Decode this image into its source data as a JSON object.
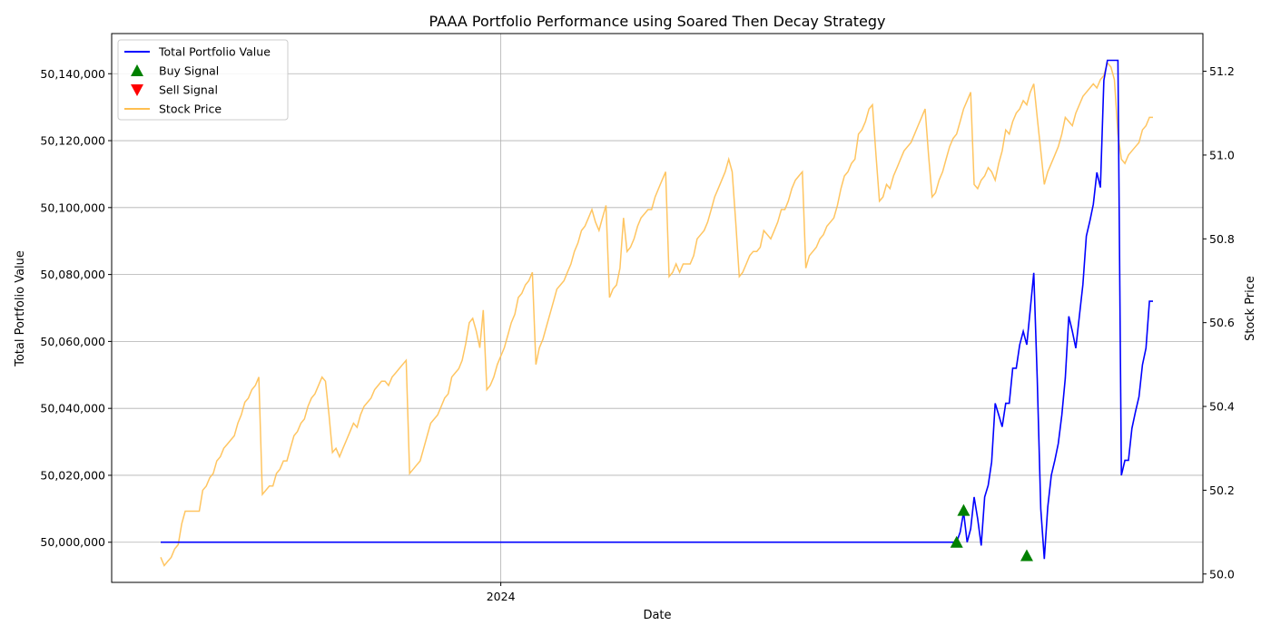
{
  "chart_data": {
    "type": "line",
    "title": "PAAA Portfolio Performance using Soared Then Decay Strategy",
    "xlabel": "Date",
    "ylabel_left": "Total Portfolio Value",
    "ylabel_right": "Stock Price",
    "x_ticks": [
      "2024"
    ],
    "x_range_index": [
      0,
      270
    ],
    "x_tick_index": 97,
    "y_left_range": [
      49988000,
      50152000
    ],
    "y_left_ticks": [
      "50,000,000",
      "50,020,000",
      "50,040,000",
      "50,060,000",
      "50,080,000",
      "50,100,000",
      "50,120,000",
      "50,140,000"
    ],
    "y_left_tick_values": [
      50000000,
      50020000,
      50040000,
      50060000,
      50080000,
      50100000,
      50120000,
      50140000
    ],
    "y_right_range": [
      49.98,
      51.29
    ],
    "y_right_ticks": [
      "50.0",
      "50.2",
      "50.4",
      "50.6",
      "50.8",
      "51.0",
      "51.2"
    ],
    "y_right_tick_values": [
      50.0,
      50.2,
      50.4,
      50.6,
      50.8,
      51.0,
      51.2
    ],
    "grid": true,
    "legend_position": "top-left",
    "legend": [
      {
        "label": "Total Portfolio Value",
        "kind": "line",
        "color": "#0000ff"
      },
      {
        "label": "Buy Signal",
        "kind": "marker-up",
        "color": "#008000"
      },
      {
        "label": "Sell Signal",
        "kind": "marker-down",
        "color": "#ff0000"
      },
      {
        "label": "Stock Price",
        "kind": "line",
        "color": "#ffbf50"
      }
    ],
    "portfolio_value": [
      [
        0,
        50000000
      ],
      [
        227,
        50000000
      ],
      [
        228,
        50003000
      ],
      [
        229,
        50009000
      ],
      [
        230,
        50000000
      ],
      [
        231,
        50004000
      ],
      [
        232,
        50013500
      ],
      [
        233,
        50007000
      ],
      [
        234,
        49999000
      ],
      [
        235,
        50013500
      ],
      [
        236,
        50017000
      ],
      [
        237,
        50024000
      ],
      [
        238,
        50041500
      ],
      [
        239,
        50038000
      ],
      [
        240,
        50034500
      ],
      [
        241,
        50041500
      ],
      [
        242,
        50041500
      ],
      [
        243,
        50052000
      ],
      [
        244,
        50052000
      ],
      [
        245,
        50059000
      ],
      [
        246,
        50063000
      ],
      [
        247,
        50059000
      ],
      [
        248,
        50069500
      ],
      [
        249,
        50080500
      ],
      [
        250,
        50049000
      ],
      [
        251,
        50010000
      ],
      [
        252,
        49995000
      ],
      [
        253,
        50010500
      ],
      [
        254,
        50020000
      ],
      [
        255,
        50024500
      ],
      [
        256,
        50029500
      ],
      [
        257,
        50038000
      ],
      [
        258,
        50049000
      ],
      [
        259,
        50067500
      ],
      [
        260,
        50063000
      ],
      [
        261,
        50058000
      ],
      [
        262,
        50067500
      ],
      [
        263,
        50077000
      ],
      [
        264,
        50091500
      ],
      [
        265,
        50096000
      ],
      [
        266,
        50101000
      ],
      [
        267,
        50110500
      ],
      [
        268,
        50106000
      ],
      [
        269,
        50138000
      ],
      [
        270,
        50144000
      ],
      [
        272,
        50144000
      ],
      [
        273,
        50144000
      ],
      [
        274,
        50020000
      ],
      [
        275,
        50024500
      ],
      [
        276,
        50024500
      ],
      [
        277,
        50034000
      ],
      [
        278,
        50039000
      ],
      [
        279,
        50043500
      ],
      [
        280,
        50053000
      ],
      [
        281,
        50058000
      ],
      [
        282,
        50072000
      ],
      [
        283,
        50072000
      ]
    ],
    "stock_price": [
      [
        0,
        50.04
      ],
      [
        1,
        50.02
      ],
      [
        2,
        50.03
      ],
      [
        3,
        50.04
      ],
      [
        4,
        50.06
      ],
      [
        5,
        50.07
      ],
      [
        6,
        50.12
      ],
      [
        7,
        50.15
      ],
      [
        8,
        50.15
      ],
      [
        9,
        50.15
      ],
      [
        10,
        50.15
      ],
      [
        11,
        50.15
      ],
      [
        12,
        50.2
      ],
      [
        13,
        50.21
      ],
      [
        14,
        50.23
      ],
      [
        15,
        50.24
      ],
      [
        16,
        50.27
      ],
      [
        17,
        50.28
      ],
      [
        18,
        50.3
      ],
      [
        19,
        50.31
      ],
      [
        20,
        50.32
      ],
      [
        21,
        50.33
      ],
      [
        22,
        50.36
      ],
      [
        23,
        50.38
      ],
      [
        24,
        50.41
      ],
      [
        25,
        50.42
      ],
      [
        26,
        50.44
      ],
      [
        27,
        50.45
      ],
      [
        28,
        50.47
      ],
      [
        29,
        50.19
      ],
      [
        30,
        50.2
      ],
      [
        31,
        50.21
      ],
      [
        32,
        50.21
      ],
      [
        33,
        50.24
      ],
      [
        34,
        50.25
      ],
      [
        35,
        50.27
      ],
      [
        36,
        50.27
      ],
      [
        37,
        50.3
      ],
      [
        38,
        50.33
      ],
      [
        39,
        50.34
      ],
      [
        40,
        50.36
      ],
      [
        41,
        50.37
      ],
      [
        42,
        50.4
      ],
      [
        43,
        50.42
      ],
      [
        44,
        50.43
      ],
      [
        45,
        50.45
      ],
      [
        46,
        50.47
      ],
      [
        47,
        50.46
      ],
      [
        48,
        50.38
      ],
      [
        49,
        50.29
      ],
      [
        50,
        50.3
      ],
      [
        51,
        50.28
      ],
      [
        52,
        50.3
      ],
      [
        53,
        50.32
      ],
      [
        54,
        50.34
      ],
      [
        55,
        50.36
      ],
      [
        56,
        50.35
      ],
      [
        57,
        50.38
      ],
      [
        58,
        50.4
      ],
      [
        59,
        50.41
      ],
      [
        60,
        50.42
      ],
      [
        61,
        50.44
      ],
      [
        62,
        50.45
      ],
      [
        63,
        50.46
      ],
      [
        64,
        50.46
      ],
      [
        65,
        50.45
      ],
      [
        66,
        50.47
      ],
      [
        67,
        50.48
      ],
      [
        68,
        50.49
      ],
      [
        69,
        50.5
      ],
      [
        70,
        50.51
      ],
      [
        71,
        50.24
      ],
      [
        72,
        50.25
      ],
      [
        73,
        50.26
      ],
      [
        74,
        50.27
      ],
      [
        75,
        50.3
      ],
      [
        76,
        50.33
      ],
      [
        77,
        50.36
      ],
      [
        78,
        50.37
      ],
      [
        79,
        50.38
      ],
      [
        80,
        50.4
      ],
      [
        81,
        50.42
      ],
      [
        82,
        50.43
      ],
      [
        83,
        50.47
      ],
      [
        84,
        50.48
      ],
      [
        85,
        50.49
      ],
      [
        86,
        50.51
      ],
      [
        87,
        50.55
      ],
      [
        88,
        50.6
      ],
      [
        89,
        50.61
      ],
      [
        90,
        50.58
      ],
      [
        91,
        50.54
      ],
      [
        92,
        50.63
      ],
      [
        93,
        50.44
      ],
      [
        94,
        50.45
      ],
      [
        95,
        50.47
      ],
      [
        96,
        50.5
      ],
      [
        97,
        50.52
      ],
      [
        98,
        50.54
      ],
      [
        99,
        50.57
      ],
      [
        100,
        50.6
      ],
      [
        101,
        50.62
      ],
      [
        102,
        50.66
      ],
      [
        103,
        50.67
      ],
      [
        104,
        50.69
      ],
      [
        105,
        50.7
      ],
      [
        106,
        50.72
      ],
      [
        107,
        50.5
      ],
      [
        108,
        50.54
      ],
      [
        109,
        50.56
      ],
      [
        110,
        50.59
      ],
      [
        111,
        50.62
      ],
      [
        112,
        50.65
      ],
      [
        113,
        50.68
      ],
      [
        114,
        50.69
      ],
      [
        115,
        50.7
      ],
      [
        116,
        50.72
      ],
      [
        117,
        50.74
      ],
      [
        118,
        50.77
      ],
      [
        119,
        50.79
      ],
      [
        120,
        50.82
      ],
      [
        121,
        50.83
      ],
      [
        122,
        50.85
      ],
      [
        123,
        50.87
      ],
      [
        124,
        50.84
      ],
      [
        125,
        50.82
      ],
      [
        126,
        50.85
      ],
      [
        127,
        50.88
      ],
      [
        128,
        50.66
      ],
      [
        129,
        50.68
      ],
      [
        130,
        50.69
      ],
      [
        131,
        50.73
      ],
      [
        132,
        50.85
      ],
      [
        133,
        50.77
      ],
      [
        134,
        50.78
      ],
      [
        135,
        50.8
      ],
      [
        136,
        50.83
      ],
      [
        137,
        50.85
      ],
      [
        138,
        50.86
      ],
      [
        139,
        50.87
      ],
      [
        140,
        50.87
      ],
      [
        141,
        50.9
      ],
      [
        142,
        50.92
      ],
      [
        143,
        50.94
      ],
      [
        144,
        50.96
      ],
      [
        145,
        50.71
      ],
      [
        146,
        50.72
      ],
      [
        147,
        50.74
      ],
      [
        148,
        50.72
      ],
      [
        149,
        50.74
      ],
      [
        150,
        50.74
      ],
      [
        151,
        50.74
      ],
      [
        152,
        50.76
      ],
      [
        153,
        50.8
      ],
      [
        154,
        50.81
      ],
      [
        155,
        50.82
      ],
      [
        156,
        50.84
      ],
      [
        157,
        50.87
      ],
      [
        158,
        50.9
      ],
      [
        159,
        50.92
      ],
      [
        160,
        50.94
      ],
      [
        161,
        50.96
      ],
      [
        162,
        50.99
      ],
      [
        163,
        50.96
      ],
      [
        164,
        50.84
      ],
      [
        165,
        50.71
      ],
      [
        166,
        50.72
      ],
      [
        167,
        50.74
      ],
      [
        168,
        50.76
      ],
      [
        169,
        50.77
      ],
      [
        170,
        50.77
      ],
      [
        171,
        50.78
      ],
      [
        172,
        50.82
      ],
      [
        173,
        50.81
      ],
      [
        174,
        50.8
      ],
      [
        175,
        50.82
      ],
      [
        176,
        50.84
      ],
      [
        177,
        50.87
      ],
      [
        178,
        50.87
      ],
      [
        179,
        50.89
      ],
      [
        180,
        50.92
      ],
      [
        181,
        50.94
      ],
      [
        182,
        50.95
      ],
      [
        183,
        50.96
      ],
      [
        184,
        50.73
      ],
      [
        185,
        50.76
      ],
      [
        186,
        50.77
      ],
      [
        187,
        50.78
      ],
      [
        188,
        50.8
      ],
      [
        189,
        50.81
      ],
      [
        190,
        50.83
      ],
      [
        191,
        50.84
      ],
      [
        192,
        50.85
      ],
      [
        193,
        50.88
      ],
      [
        194,
        50.92
      ],
      [
        195,
        50.95
      ],
      [
        196,
        50.96
      ],
      [
        197,
        50.98
      ],
      [
        198,
        50.99
      ],
      [
        199,
        51.05
      ],
      [
        200,
        51.06
      ],
      [
        201,
        51.08
      ],
      [
        202,
        51.11
      ],
      [
        203,
        51.12
      ],
      [
        204,
        51.0
      ],
      [
        205,
        50.89
      ],
      [
        206,
        50.9
      ],
      [
        207,
        50.93
      ],
      [
        208,
        50.92
      ],
      [
        209,
        50.95
      ],
      [
        210,
        50.97
      ],
      [
        211,
        50.99
      ],
      [
        212,
        51.01
      ],
      [
        213,
        51.02
      ],
      [
        214,
        51.03
      ],
      [
        215,
        51.05
      ],
      [
        216,
        51.07
      ],
      [
        217,
        51.09
      ],
      [
        218,
        51.11
      ],
      [
        219,
        51.0
      ],
      [
        220,
        50.9
      ],
      [
        221,
        50.91
      ],
      [
        222,
        50.94
      ],
      [
        223,
        50.96
      ],
      [
        224,
        50.99
      ],
      [
        225,
        51.02
      ],
      [
        226,
        51.04
      ],
      [
        227,
        51.05
      ],
      [
        228,
        51.08
      ],
      [
        229,
        51.11
      ],
      [
        230,
        51.13
      ],
      [
        231,
        51.15
      ],
      [
        232,
        50.93
      ],
      [
        233,
        50.92
      ],
      [
        234,
        50.94
      ],
      [
        235,
        50.95
      ],
      [
        236,
        50.97
      ],
      [
        237,
        50.96
      ],
      [
        238,
        50.94
      ],
      [
        239,
        50.98
      ],
      [
        240,
        51.01
      ],
      [
        241,
        51.06
      ],
      [
        242,
        51.05
      ],
      [
        243,
        51.08
      ],
      [
        244,
        51.1
      ],
      [
        245,
        51.11
      ],
      [
        246,
        51.13
      ],
      [
        247,
        51.12
      ],
      [
        248,
        51.15
      ],
      [
        249,
        51.17
      ],
      [
        250,
        51.09
      ],
      [
        251,
        51.01
      ],
      [
        252,
        50.93
      ],
      [
        253,
        50.96
      ],
      [
        254,
        50.98
      ],
      [
        255,
        51.0
      ],
      [
        256,
        51.02
      ],
      [
        257,
        51.05
      ],
      [
        258,
        51.09
      ],
      [
        259,
        51.08
      ],
      [
        260,
        51.07
      ],
      [
        261,
        51.1
      ],
      [
        262,
        51.12
      ],
      [
        263,
        51.14
      ],
      [
        264,
        51.15
      ],
      [
        265,
        51.16
      ],
      [
        266,
        51.17
      ],
      [
        267,
        51.16
      ],
      [
        268,
        51.18
      ],
      [
        269,
        51.19
      ],
      [
        270,
        51.22
      ],
      [
        271,
        51.21
      ],
      [
        272,
        51.18
      ],
      [
        273,
        51.05
      ],
      [
        274,
        50.99
      ],
      [
        275,
        50.98
      ],
      [
        276,
        51.0
      ],
      [
        277,
        51.01
      ],
      [
        278,
        51.02
      ],
      [
        279,
        51.03
      ],
      [
        280,
        51.06
      ],
      [
        281,
        51.07
      ],
      [
        282,
        51.09
      ],
      [
        283,
        51.09
      ]
    ],
    "buy_signals": [
      [
        227,
        50000000
      ],
      [
        229,
        50009500
      ],
      [
        247,
        49996000
      ]
    ],
    "sell_signals": []
  }
}
